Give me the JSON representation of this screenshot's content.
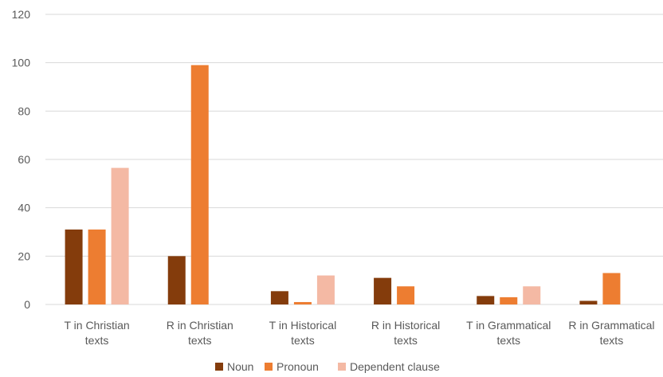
{
  "chart_data": {
    "type": "bar",
    "categories": [
      [
        "T in Christian",
        "texts"
      ],
      [
        "R in Christian",
        "texts"
      ],
      [
        "T in Historical",
        "texts"
      ],
      [
        "R in Historical",
        "texts"
      ],
      [
        "T in Grammatical",
        "texts"
      ],
      [
        "R in Grammatical",
        "texts"
      ]
    ],
    "series": [
      {
        "name": "Noun",
        "color": "#843c0c",
        "values": [
          31,
          20,
          5.5,
          11,
          3.5,
          1.5
        ]
      },
      {
        "name": "Pronoun",
        "color": "#ed7d31",
        "values": [
          31,
          99,
          1,
          7.5,
          3,
          13
        ]
      },
      {
        "name": "Dependent clause",
        "color": "#f4b9a4",
        "values": [
          56.5,
          0,
          12,
          0,
          7.5,
          0
        ]
      }
    ],
    "yticks": [
      0,
      20,
      40,
      60,
      80,
      100,
      120
    ],
    "ylim": [
      0,
      120
    ],
    "grid": true,
    "legend_position": "bottom"
  }
}
